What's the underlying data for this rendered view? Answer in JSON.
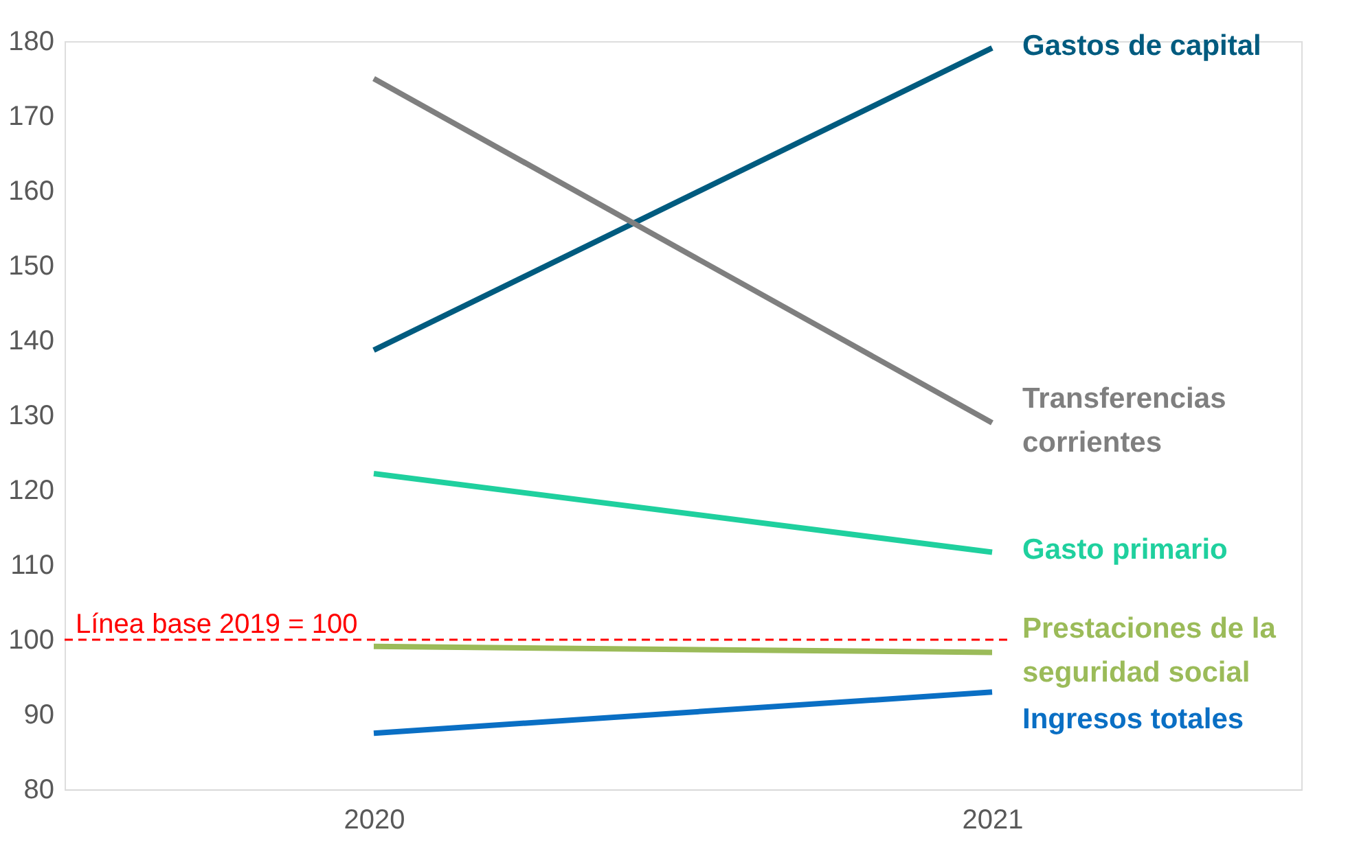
{
  "chart_data": {
    "type": "line",
    "categories": [
      "2020",
      "2021"
    ],
    "series": [
      {
        "name": "Gastos de capital",
        "color": "#005b7f",
        "values": [
          138.7,
          179.1
        ]
      },
      {
        "name": "Transferencias corrientes",
        "color": "#7f7f7f",
        "values": [
          175,
          129
        ]
      },
      {
        "name": "Gasto primario",
        "color": "#1fd09e",
        "values": [
          122.2,
          111.7
        ]
      },
      {
        "name": "Prestaciones de la seguridad social",
        "color": "#9bbb59",
        "values": [
          99.1,
          98.3
        ]
      },
      {
        "name": "Ingresos totales",
        "color": "#0a6fc4",
        "values": [
          87.5,
          93
        ]
      }
    ],
    "ylim": [
      80,
      180
    ],
    "yticks": [
      80,
      90,
      100,
      110,
      120,
      130,
      140,
      150,
      160,
      170,
      180
    ],
    "ref_lines": [
      {
        "axis": "y",
        "value": 100,
        "label": "Línea base 2019 = 100",
        "color": "#ff0000",
        "line_style": "dashed"
      }
    ],
    "grid": false,
    "marker": "none",
    "line_style": "solid"
  }
}
